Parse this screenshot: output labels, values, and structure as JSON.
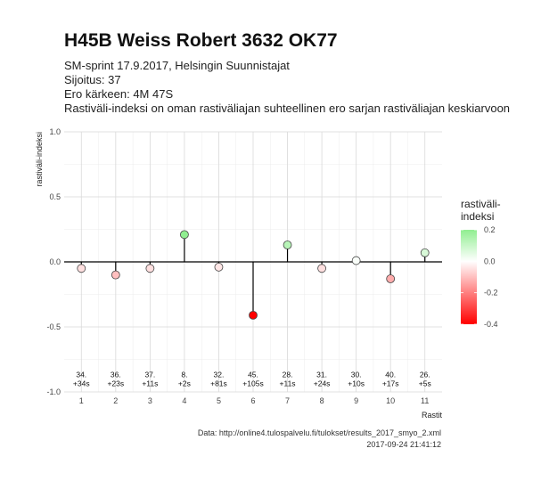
{
  "header": {
    "title": "H45B Weiss Robert 3632 OK77",
    "subtitle_lines": [
      "SM-sprint 17.9.2017, Helsingin Suunnistajat",
      "Sijoitus: 37",
      "Ero kärkeen: 4M 47S",
      "Rastiväli-indeksi on oman rastiväliajan suhteellinen ero sarjan rastiväliajan keskiarvoon"
    ]
  },
  "caption": {
    "source": "Data: http://online4.tulospalvelu.fi/tulokset/results_2017_smyo_2.xml",
    "timestamp": "2017-09-24 21:41:12"
  },
  "chart_data": {
    "type": "scatter",
    "subtype": "lollipop",
    "xlabel": "Rastit",
    "ylabel": "rastiväli-indeksi",
    "xlim": [
      0.5,
      11.5
    ],
    "ylim": [
      -1.0,
      1.0
    ],
    "x_ticks": [
      1,
      2,
      3,
      4,
      5,
      6,
      7,
      8,
      9,
      10,
      11
    ],
    "y_ticks": [
      -1.0,
      -0.5,
      0.0,
      0.5,
      1.0
    ],
    "y_tick_labels": [
      "-1.0",
      "-0.5",
      "0.0",
      "0.5",
      "1.0"
    ],
    "grid": true,
    "points": [
      {
        "x": 1,
        "y": -0.05,
        "label_top": "34.",
        "label_bottom": "+34s"
      },
      {
        "x": 2,
        "y": -0.1,
        "label_top": "36.",
        "label_bottom": "+23s"
      },
      {
        "x": 3,
        "y": -0.05,
        "label_top": "37.",
        "label_bottom": "+11s"
      },
      {
        "x": 4,
        "y": 0.21,
        "label_top": "8.",
        "label_bottom": "+2s"
      },
      {
        "x": 5,
        "y": -0.04,
        "label_top": "32.",
        "label_bottom": "+81s"
      },
      {
        "x": 6,
        "y": -0.41,
        "label_top": "45.",
        "label_bottom": "+105s"
      },
      {
        "x": 7,
        "y": 0.13,
        "label_top": "28.",
        "label_bottom": "+11s"
      },
      {
        "x": 8,
        "y": -0.05,
        "label_top": "31.",
        "label_bottom": "+24s"
      },
      {
        "x": 9,
        "y": 0.01,
        "label_top": "30.",
        "label_bottom": "+10s"
      },
      {
        "x": 10,
        "y": -0.13,
        "label_top": "40.",
        "label_bottom": "+17s"
      },
      {
        "x": 11,
        "y": 0.07,
        "label_top": "26.",
        "label_bottom": "+5s"
      }
    ],
    "label_y": -0.9,
    "legend": {
      "title_lines": [
        "rastiväli-",
        "indeksi"
      ],
      "placement": "right",
      "min": -0.4,
      "max": 0.2,
      "ticks": [
        0.2,
        0.0,
        -0.2,
        -0.4
      ],
      "tick_labels": [
        "0.2",
        "0.0",
        "-0.2",
        "-0.4"
      ],
      "color_low": "#ff0000",
      "color_mid": "#ffffff",
      "color_high": "#90ee90"
    }
  }
}
